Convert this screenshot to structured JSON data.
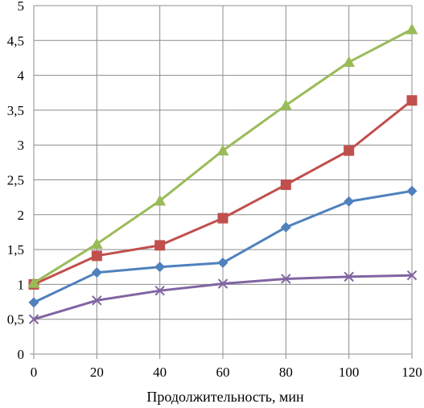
{
  "chart_data": {
    "type": "line",
    "title": "",
    "xlabel": "Продолжительность, мин",
    "ylabel": "",
    "x": [
      0,
      20,
      40,
      60,
      80,
      100,
      120
    ],
    "x_ticks": [
      "0",
      "20",
      "40",
      "60",
      "80",
      "100",
      "120"
    ],
    "y_ticks": [
      "0",
      "0,5",
      "1",
      "1,5",
      "2",
      "2,5",
      "3",
      "3,5",
      "4",
      "4,5",
      "5"
    ],
    "xlim": [
      0,
      120
    ],
    "ylim": [
      0,
      5
    ],
    "grid": true,
    "legend": "none",
    "series": [
      {
        "color": "#4f81bd",
        "marker": "diamond",
        "values": [
          0.74,
          1.17,
          1.25,
          1.31,
          1.82,
          2.19,
          2.34
        ]
      },
      {
        "color": "#c0504d",
        "marker": "square",
        "values": [
          1.0,
          1.41,
          1.56,
          1.95,
          2.43,
          2.92,
          3.64
        ]
      },
      {
        "color": "#9bbb59",
        "marker": "triangle",
        "values": [
          1.02,
          1.58,
          2.2,
          2.92,
          3.57,
          4.19,
          4.66
        ]
      },
      {
        "color": "#8064a2",
        "marker": "x",
        "values": [
          0.5,
          0.77,
          0.91,
          1.01,
          1.08,
          1.11,
          1.13
        ]
      }
    ]
  }
}
